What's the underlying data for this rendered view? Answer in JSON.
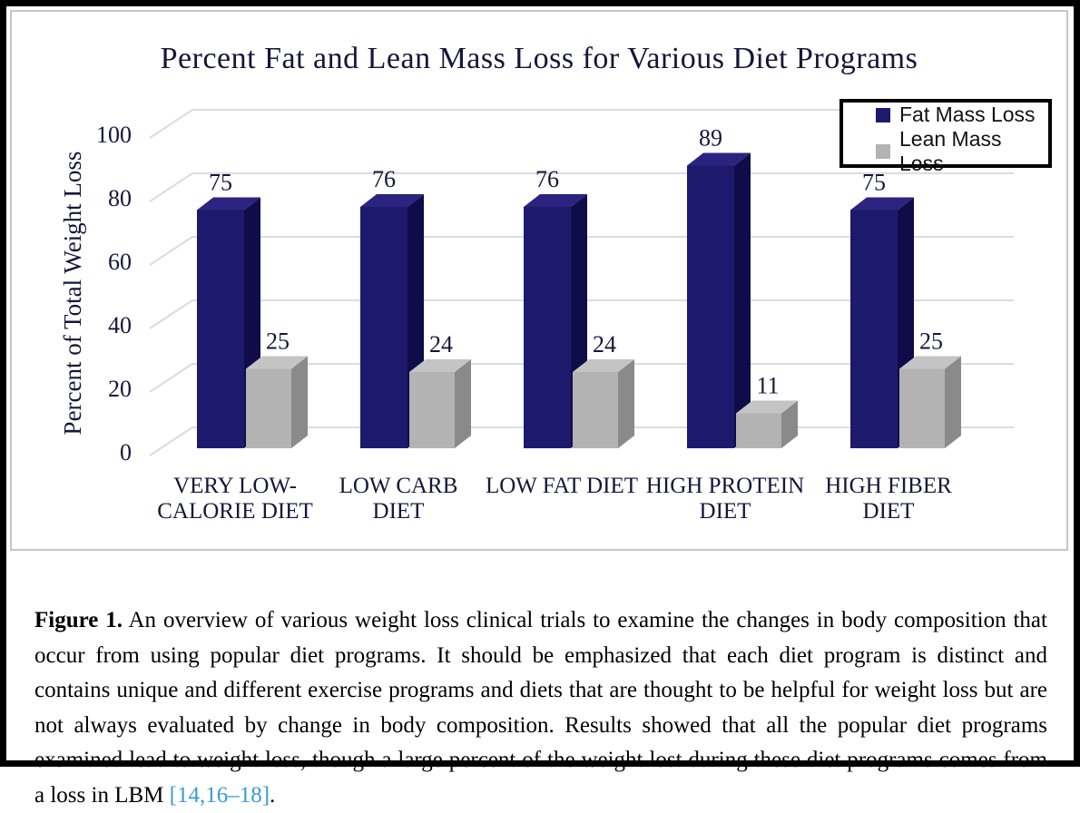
{
  "caption": {
    "label": "Figure 1.",
    "text": " An overview of various weight loss clinical trials to examine the changes in body composition that occur from using popular diet programs. It should be emphasized that each diet program is distinct and contains unique and different exercise programs and diets that are thought to be helpful for weight loss but are not always evaluated by change in body composition. Results showed that all the popular diet programs examined lead to weight loss, though a large percent of the weight lost during these diet programs comes from a loss in LBM ",
    "citation": "[14,16–18]",
    "suffix": "."
  },
  "chart_data": {
    "type": "bar",
    "title": "Percent Fat and Lean Mass Loss for Various Diet Programs",
    "ylabel": "Percent of Total Weight Loss",
    "xlabel": "",
    "categories": [
      "VERY LOW-CALORIE DIET",
      "LOW CARB DIET",
      "LOW FAT DIET",
      "HIGH PROTEIN DIET",
      "HIGH FIBER DIET"
    ],
    "category_lines": [
      [
        "VERY LOW-",
        "CALORIE DIET"
      ],
      [
        "LOW CARB",
        "DIET"
      ],
      [
        "LOW FAT DIET"
      ],
      [
        "HIGH PROTEIN",
        "DIET"
      ],
      [
        "HIGH FIBER",
        "DIET"
      ]
    ],
    "series": [
      {
        "name": "Fat Mass Loss",
        "values": [
          75,
          76,
          76,
          89,
          75
        ]
      },
      {
        "name": "Lean Mass Loss",
        "values": [
          25,
          24,
          24,
          11,
          25
        ]
      }
    ],
    "yticks": [
      0,
      20,
      40,
      60,
      80,
      100
    ],
    "ylim": [
      0,
      100
    ],
    "grid": true,
    "legend_position": "top-right",
    "style": "3d-clustered",
    "colors": {
      "fat_front": "#1d1a6e",
      "fat_side": "#100c4a",
      "fat_top": "#2a2480",
      "lean_front": "#b3b3b3",
      "lean_side": "#8a8a8a",
      "lean_top": "#c4c4c4",
      "gridline": "#dcdcdc",
      "chart_text": "#16163a",
      "link": "#3a9bd5",
      "legend_border": "#000000",
      "frame": "#000000"
    }
  }
}
